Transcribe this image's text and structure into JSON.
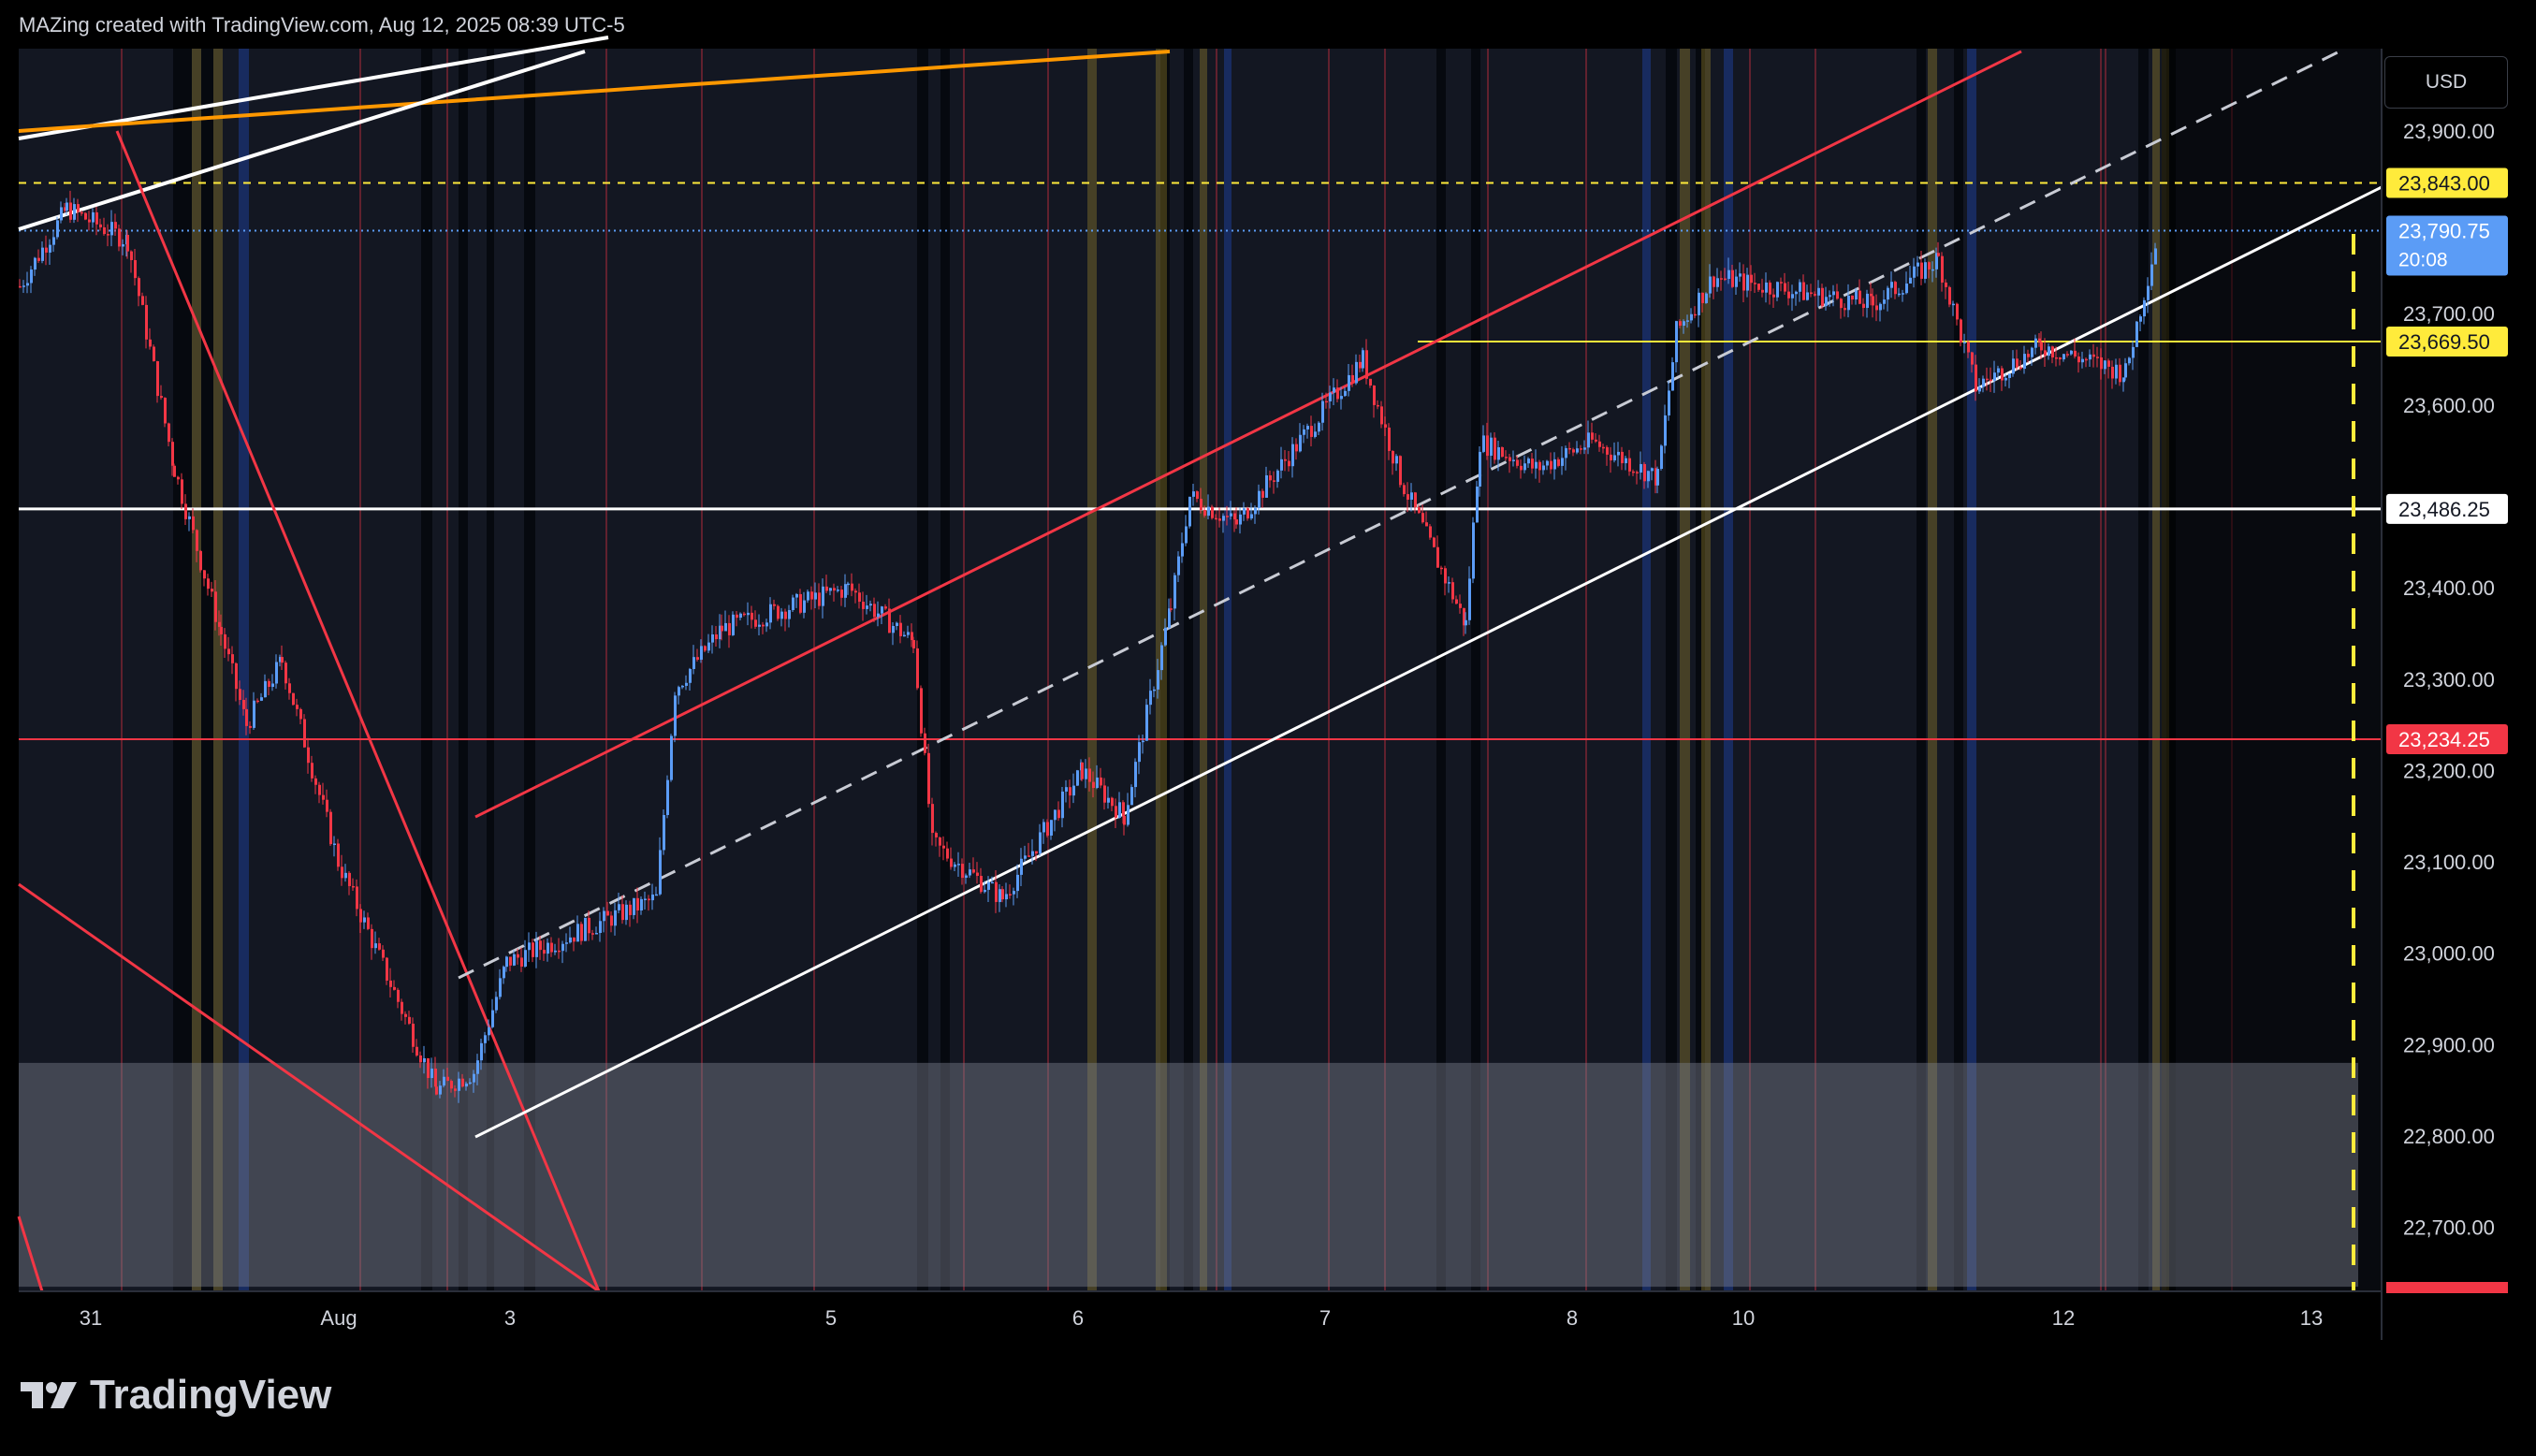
{
  "header": {
    "text": "MAZing created with TradingView.com, Aug 12, 2025 08:39 UTC-5"
  },
  "brand": {
    "name": "TradingView",
    "logo_icon": "tradingview-logo-icon"
  },
  "currency_button": {
    "label": "USD"
  },
  "colors": {
    "up": "#5b9cf6",
    "down": "#f23645",
    "trend_red": "#f23645",
    "trend_white": "#ffffff",
    "orange": "#ff9800",
    "yellow": "#ffeb3b",
    "session_yellow": "#fdd835",
    "session_blue": "#2962ff",
    "session_red": "#f23645",
    "zone": "#7a7e8c"
  },
  "chart_data": {
    "type": "candlestick",
    "title": "",
    "ylim": [
      22630,
      23990
    ],
    "y_ticks": [
      23900,
      23700,
      23600,
      23400,
      23300,
      23200,
      23100,
      23000,
      22900,
      22800,
      22700
    ],
    "y_tick_labels": [
      "23,900.00",
      "23,700.00",
      "23,600.00",
      "23,400.00",
      "23,300.00",
      "23,200.00",
      "23,100.00",
      "23,000.00",
      "22,900.00",
      "22,800.00",
      "22,700.00"
    ],
    "x_tick_labels": [
      "31",
      "Aug",
      "3",
      "5",
      "6",
      "7",
      "8",
      "10",
      "12",
      "13"
    ],
    "price_labels": [
      {
        "value": 23843.0,
        "label": "23,843.00",
        "style": "yellow"
      },
      {
        "value": 23790.75,
        "label": "23,790.75",
        "sub": "20:08",
        "style": "blue"
      },
      {
        "value": 23669.5,
        "label": "23,669.50",
        "style": "yellow"
      },
      {
        "value": 23486.25,
        "label": "23,486.25",
        "style": "white"
      },
      {
        "value": 23234.25,
        "label": "23,234.25",
        "style": "red"
      }
    ],
    "horizontal_lines": [
      {
        "value": 23843.0,
        "style": "yellow-dashed"
      },
      {
        "value": 23790.75,
        "style": "blue-dotted"
      },
      {
        "value": 23669.5,
        "style": "yellow-solid",
        "from": "Aug 7"
      },
      {
        "value": 23486.25,
        "style": "white-solid"
      },
      {
        "value": 23234.25,
        "style": "red-solid"
      }
    ],
    "demand_zone": {
      "from": 22635,
      "to": 22880
    },
    "path_points": [
      {
        "t": "Jul 31",
        "price": 23730
      },
      {
        "t": "Jul 31",
        "price": 23815
      },
      {
        "t": "Jul 31",
        "price": 23780
      },
      {
        "t": "Aug 1",
        "price": 23530
      },
      {
        "t": "Aug 1",
        "price": 23350
      },
      {
        "t": "Aug 1",
        "price": 23250
      },
      {
        "t": "Aug 1",
        "price": 23320
      },
      {
        "t": "Aug 1",
        "price": 23100
      },
      {
        "t": "Aug 2",
        "price": 22850
      },
      {
        "t": "Aug 3",
        "price": 22870
      },
      {
        "t": "Aug 3",
        "price": 22990
      },
      {
        "t": "Aug 4",
        "price": 23060
      },
      {
        "t": "Aug 4",
        "price": 23290
      },
      {
        "t": "Aug 4",
        "price": 23355
      },
      {
        "t": "Aug 5",
        "price": 23400
      },
      {
        "t": "Aug 5",
        "price": 23340
      },
      {
        "t": "Aug 5",
        "price": 23120
      },
      {
        "t": "Aug 6",
        "price": 23060
      },
      {
        "t": "Aug 6",
        "price": 23200
      },
      {
        "t": "Aug 6",
        "price": 23150
      },
      {
        "t": "Aug 6",
        "price": 23380
      },
      {
        "t": "Aug 7",
        "price": 23500
      },
      {
        "t": "Aug 7",
        "price": 23470
      },
      {
        "t": "Aug 7",
        "price": 23650
      },
      {
        "t": "Aug 7",
        "price": 23520
      },
      {
        "t": "Aug 7",
        "price": 23360
      },
      {
        "t": "Aug 8",
        "price": 23560
      },
      {
        "t": "Aug 8",
        "price": 23530
      },
      {
        "t": "Aug 8",
        "price": 23560
      },
      {
        "t": "Aug 8",
        "price": 23520
      },
      {
        "t": "Aug 10",
        "price": 23680
      },
      {
        "t": "Aug 10",
        "price": 23740
      },
      {
        "t": "Aug 11",
        "price": 23710
      },
      {
        "t": "Aug 11",
        "price": 23760
      },
      {
        "t": "Aug 11",
        "price": 23620
      },
      {
        "t": "Aug 12",
        "price": 23665
      },
      {
        "t": "Aug 12",
        "price": 23635
      },
      {
        "t": "Aug 12",
        "price": 23790
      }
    ]
  }
}
